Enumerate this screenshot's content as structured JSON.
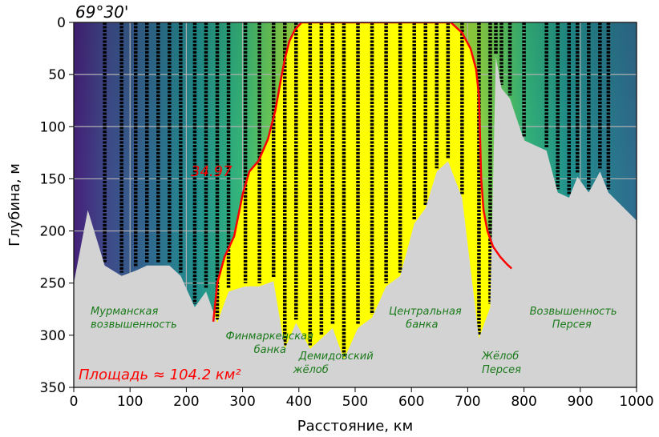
{
  "chart_data": {
    "type": "heatmap",
    "title": "69°30'",
    "xlabel": "Расстояние, км",
    "ylabel": "Глубина, м",
    "xlim": [
      0,
      1000
    ],
    "ylim": [
      350,
      0
    ],
    "x_ticks": [
      "0",
      "100",
      "200",
      "300",
      "400",
      "500",
      "600",
      "700",
      "800",
      "900",
      "1000"
    ],
    "y_ticks": [
      "0",
      "50",
      "100",
      "150",
      "200",
      "250",
      "300",
      "350"
    ],
    "grid": true,
    "isoline": {
      "label": "34.97",
      "color": "#ff0000",
      "x": [
        248,
        255,
        268,
        285,
        300,
        312,
        328,
        345,
        358,
        368,
        375,
        383,
        393,
        405,
        420,
        440,
        470,
        520,
        580,
        640,
        670,
        690,
        705,
        715,
        720,
        722,
        724,
        728,
        735,
        745,
        758,
        770,
        778
      ],
      "y": [
        287,
        250,
        225,
        205,
        165,
        143,
        133,
        112,
        85,
        55,
        35,
        18,
        7,
        0,
        0,
        0,
        0,
        0,
        0,
        0,
        0,
        10,
        25,
        45,
        70,
        110,
        150,
        180,
        200,
        215,
        225,
        232,
        236
      ]
    },
    "highlight_fill": "#ffff00",
    "area_label": "Площадь ≈ 104.2 км²",
    "station_x": [
      55,
      85,
      110,
      130,
      150,
      170,
      190,
      215,
      235,
      255,
      275,
      305,
      330,
      355,
      375,
      395,
      420,
      440,
      460,
      480,
      505,
      530,
      555,
      580,
      605,
      625,
      645,
      665,
      690,
      720,
      740,
      750,
      760,
      775,
      800,
      840,
      860,
      880,
      895,
      915,
      935,
      950
    ],
    "station_bottom": [
      230,
      240,
      235,
      230,
      230,
      230,
      240,
      270,
      255,
      285,
      255,
      250,
      250,
      245,
      310,
      285,
      310,
      300,
      290,
      320,
      290,
      280,
      250,
      240,
      190,
      175,
      140,
      130,
      165,
      300,
      270,
      30,
      60,
      70,
      110,
      120,
      160,
      165,
      145,
      160,
      140,
      160
    ],
    "annotations": [
      {
        "text": "Мурманская",
        "x": 30,
        "y": 280
      },
      {
        "text": "возвышенность",
        "x": 30,
        "y": 293
      },
      {
        "text": "Финмаркенская",
        "x": 270,
        "y": 304
      },
      {
        "text": "банка",
        "x": 320,
        "y": 317
      },
      {
        "text": "Демидовский",
        "x": 400,
        "y": 323
      },
      {
        "text": "жёлоб",
        "x": 390,
        "y": 336
      },
      {
        "text": "Центральная",
        "x": 560,
        "y": 280
      },
      {
        "text": "банка",
        "x": 590,
        "y": 293
      },
      {
        "text": "Жёлоб",
        "x": 725,
        "y": 323
      },
      {
        "text": "Персея",
        "x": 725,
        "y": 336
      },
      {
        "text": "Возвышенность",
        "x": 810,
        "y": 280
      },
      {
        "text": "Персея",
        "x": 850,
        "y": 293
      }
    ]
  }
}
